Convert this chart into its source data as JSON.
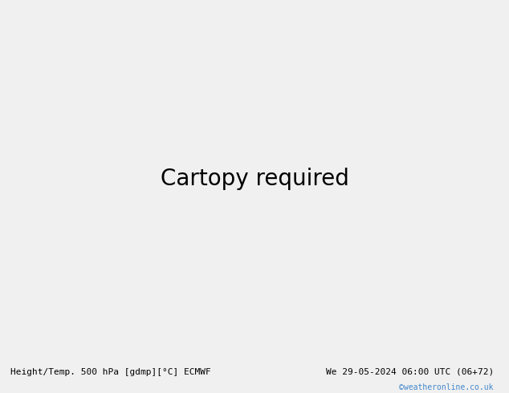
{
  "title_left": "Height/Temp. 500 hPa [gdmp][°C] ECMWF",
  "title_right": "We 29-05-2024 06:00 UTC (06+72)",
  "watermark": "©weatheronline.co.uk",
  "fig_width": 6.34,
  "fig_height": 4.9,
  "dpi": 100,
  "extent": [
    -30,
    42,
    27,
    75
  ],
  "ocean_color": "#c8c8c8",
  "land_warm_color": "#c8e6c0",
  "land_cool_color": "#c0c0c0",
  "border_color": "#888888",
  "title_fontsize": 8,
  "watermark_color": "#4488cc",
  "height_line_color": "#000000",
  "temp_orange_color": "#FFA500",
  "temp_green_color": "#90EE90",
  "temp_cyan_color": "#00BFFF"
}
